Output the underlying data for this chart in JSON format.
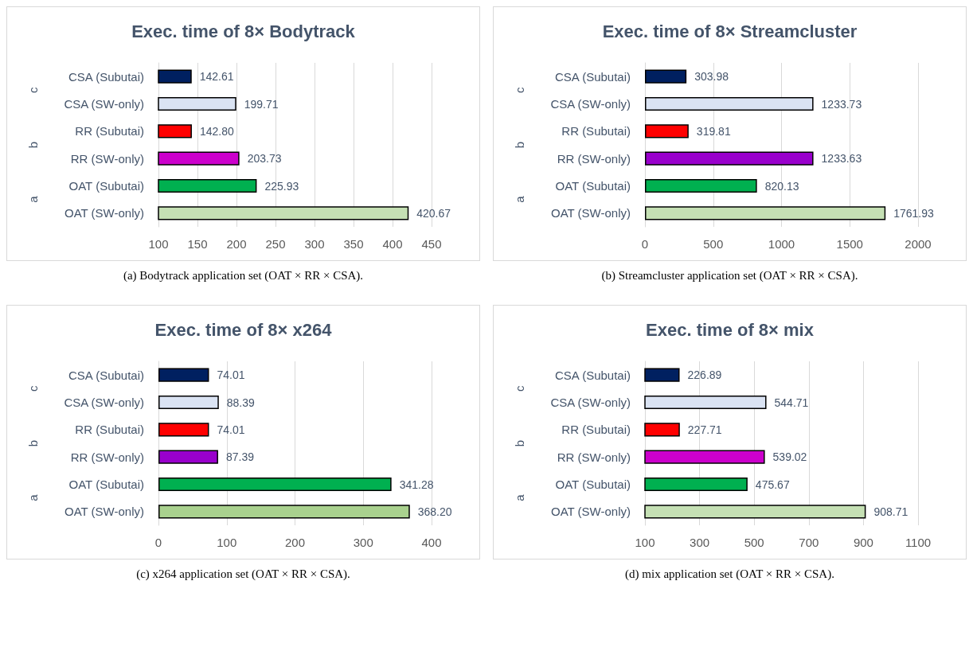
{
  "chart_data": [
    {
      "type": "bar",
      "orientation": "horizontal",
      "title": "Exec. time of 8× Bodytrack",
      "categories": [
        "CSA (Subutai)",
        "CSA (SW-only)",
        "RR (Subutai)",
        "RR (SW-only)",
        "OAT (Subutai)",
        "OAT (SW-only)"
      ],
      "values": [
        142.61,
        199.71,
        142.8,
        203.73,
        225.93,
        420.67
      ],
      "value_labels": [
        "142.61",
        "199.71",
        "142.80",
        "203.73",
        "225.93",
        "420.67"
      ],
      "colors": [
        "#002060",
        "#dae3f3",
        "#ff0000",
        "#cc00cc",
        "#00b050",
        "#c5e0b4"
      ],
      "xlim": [
        100,
        450
      ],
      "xticks": [
        100,
        150,
        200,
        250,
        300,
        350,
        400,
        450
      ],
      "grid": "x",
      "annotations": [
        "c",
        "b",
        "a",
        "(a) Bodytrack application set (OAT × RR × CSA)."
      ]
    },
    {
      "type": "bar",
      "orientation": "horizontal",
      "title": "Exec. time of 8× Streamcluster",
      "categories": [
        "CSA (Subutai)",
        "CSA (SW-only)",
        "RR (Subutai)",
        "RR (SW-only)",
        "OAT (Subutai)",
        "OAT (SW-only)"
      ],
      "values": [
        303.98,
        1233.73,
        319.81,
        1233.63,
        820.13,
        1761.93
      ],
      "value_labels": [
        "303.98",
        "1233.73",
        "319.81",
        "1233.63",
        "820.13",
        "1761.93"
      ],
      "colors": [
        "#002060",
        "#dae3f3",
        "#ff0000",
        "#9900cc",
        "#00b050",
        "#c5e0b4"
      ],
      "xlim": [
        0,
        2000
      ],
      "xticks": [
        0,
        500,
        1000,
        1500,
        2000
      ],
      "grid": "x",
      "annotations": [
        "c",
        "b",
        "a",
        "(b) Streamcluster application set (OAT × RR × CSA)."
      ]
    },
    {
      "type": "bar",
      "orientation": "horizontal",
      "title": "Exec. time of 8× x264",
      "categories": [
        "CSA (Subutai)",
        "CSA (SW-only)",
        "RR (Subutai)",
        "RR (SW-only)",
        "OAT (Subutai)",
        "OAT (SW-only)"
      ],
      "values": [
        74.01,
        88.39,
        74.01,
        87.39,
        341.28,
        368.2
      ],
      "value_labels": [
        "74.01",
        "88.39",
        "74.01",
        "87.39",
        "341.28",
        "368.20"
      ],
      "colors": [
        "#002060",
        "#dae3f3",
        "#ff0000",
        "#9900cc",
        "#00b050",
        "#a9d18e"
      ],
      "xlim": [
        0,
        400
      ],
      "xticks": [
        0,
        100,
        200,
        300,
        400
      ],
      "grid": "x",
      "annotations": [
        "c",
        "b",
        "a",
        "(c) x264 application set (OAT × RR × CSA)."
      ]
    },
    {
      "type": "bar",
      "orientation": "horizontal",
      "title": "Exec. time of 8× mix",
      "categories": [
        "CSA (Subutai)",
        "CSA (SW-only)",
        "RR (Subutai)",
        "RR (SW-only)",
        "OAT (Subutai)",
        "OAT (SW-only)"
      ],
      "values": [
        226.89,
        544.71,
        227.71,
        539.02,
        475.67,
        908.71
      ],
      "value_labels": [
        "226.89",
        "544.71",
        "227.71",
        "539.02",
        "475.67",
        "908.71"
      ],
      "colors": [
        "#002060",
        "#dae3f3",
        "#ff0000",
        "#cc00cc",
        "#00b050",
        "#c5e0b4"
      ],
      "xlim": [
        100,
        1100
      ],
      "xticks": [
        100,
        300,
        500,
        700,
        900,
        1100
      ],
      "grid": "x",
      "annotations": [
        "c",
        "b",
        "a",
        "(d) mix application set (OAT × RR × CSA)."
      ]
    }
  ]
}
